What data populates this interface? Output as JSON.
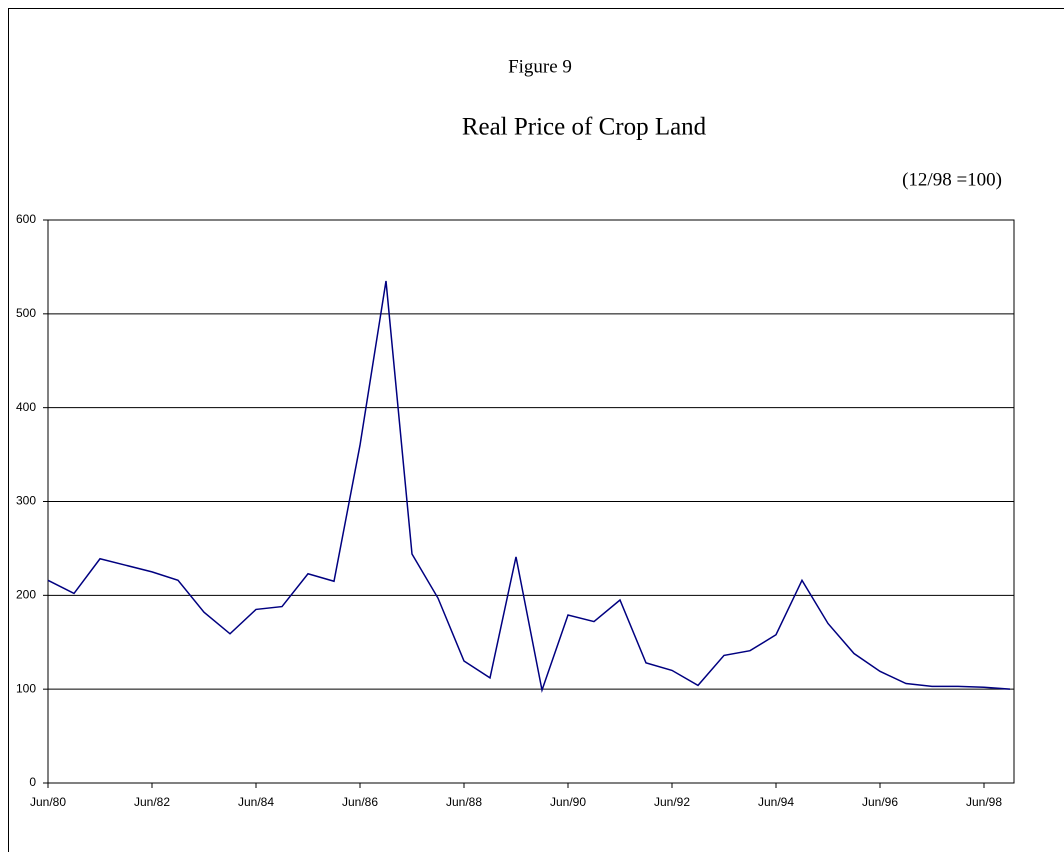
{
  "chart_data": {
    "type": "line",
    "label": "Figure 9",
    "title": "Real Price of Crop Land",
    "subtitle": "(12/98 =100)",
    "categories": [
      "Jun/80",
      null,
      null,
      null,
      "Jun/82",
      null,
      null,
      null,
      "Jun/84",
      null,
      null,
      null,
      "Jun/86",
      null,
      null,
      null,
      "Jun/88",
      null,
      null,
      null,
      "Jun/90",
      null,
      null,
      null,
      "Jun/92",
      null,
      null,
      null,
      "Jun/94",
      null,
      null,
      null,
      "Jun/96",
      null,
      null,
      null,
      "Jun/98",
      null
    ],
    "series": [
      {
        "name": "Real Price of Crop Land",
        "color": "#000080",
        "values": [
          216,
          202,
          239,
          232,
          225,
          216,
          182,
          159,
          185,
          188,
          223,
          215,
          360,
          535,
          244,
          197,
          130,
          112,
          241,
          99,
          179,
          172,
          195,
          128,
          120,
          104,
          136,
          141,
          158,
          216,
          170,
          138,
          119,
          106,
          103,
          103,
          102,
          100
        ]
      }
    ],
    "ylim": [
      0,
      600
    ],
    "yticks": [
      0,
      100,
      200,
      300,
      400,
      500,
      600
    ],
    "grid": true
  }
}
